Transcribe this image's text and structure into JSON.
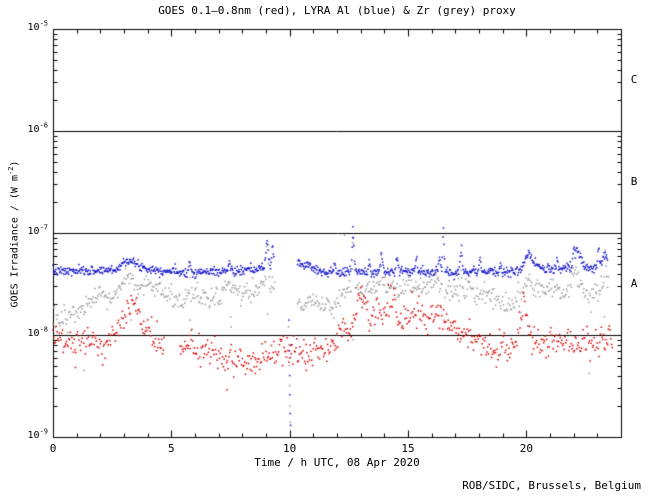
{
  "window": {
    "background": "#ffffff"
  },
  "footer": {
    "credit": "ROB/SIDC, Brussels, Belgium"
  },
  "chart_data": {
    "type": "scatter",
    "title": "GOES 0.1–0.8nm (red), LYRA Al (blue) & Zr (grey) proxy",
    "xlabel": "Time / h UTC, 08 Apr 2020",
    "ylabel": {
      "pre": "GOES Irradiance / (W m",
      "sup": "-2",
      "post": ")"
    },
    "x_axis": {
      "min": 0,
      "max": 24,
      "minor_step": 1,
      "major_ticks": [
        0,
        5,
        10,
        15,
        20
      ]
    },
    "y_axis": {
      "scale": "log",
      "log_min_exp": -9,
      "log_max_exp": -5,
      "decade_labels": [
        {
          "base": "10",
          "exp": "-5",
          "value_exp": -5
        },
        {
          "base": "10",
          "exp": "-6",
          "value_exp": -6
        },
        {
          "base": "10",
          "exp": "-7",
          "value_exp": -7
        },
        {
          "base": "10",
          "exp": "-8",
          "value_exp": -8
        },
        {
          "base": "10",
          "exp": "-9",
          "value_exp": -9
        }
      ]
    },
    "hlines": [
      1e-06,
      1e-07,
      1e-08
    ],
    "class_labels": [
      {
        "label": "C",
        "log_center": -5.5
      },
      {
        "label": "B",
        "log_center": -6.5
      },
      {
        "label": "A",
        "log_center": -7.5
      }
    ],
    "colors": {
      "goes_red": "#dc0000",
      "lyra_al_blue": "#1212cd",
      "lyra_zr_grey": "#9b9b9b",
      "axis": "#000000",
      "background": "#ffffff"
    },
    "grid": false,
    "legend": "in title",
    "series": [
      {
        "name": "LYRA Al proxy",
        "color_key": "lyra_al_blue",
        "seed": 7,
        "t_start": 0.0,
        "t_end": 23.45,
        "cadence_per_hour": 42,
        "noise_dex": 0.022,
        "gaps": [
          [
            9.35,
            10.32
          ]
        ],
        "trend": [
          [
            0,
            4.2e-08
          ],
          [
            1.0,
            4.2e-08
          ],
          [
            2.0,
            4.3e-08
          ],
          [
            2.7,
            4.4e-08
          ],
          [
            3.15,
            5.6e-08
          ],
          [
            3.5,
            4.9e-08
          ],
          [
            4.0,
            4.5e-08
          ],
          [
            4.5,
            4.3e-08
          ],
          [
            5.2,
            4.2e-08
          ],
          [
            6.0,
            4.1e-08
          ],
          [
            6.8,
            4.2e-08
          ],
          [
            7.6,
            4.2e-08
          ],
          [
            8.4,
            4.3e-08
          ],
          [
            9.0,
            4.6e-08
          ],
          [
            9.3,
            4.5e-08
          ],
          [
            10.35,
            5.3e-08
          ],
          [
            10.55,
            4.7e-08
          ],
          [
            10.8,
            5e-08
          ],
          [
            11.1,
            4.4e-08
          ],
          [
            11.6,
            4.1e-08
          ],
          [
            12.1,
            4e-08
          ],
          [
            12.7,
            4.2e-08
          ],
          [
            13.3,
            4.1e-08
          ],
          [
            14.0,
            4.2e-08
          ],
          [
            15.0,
            4.2e-08
          ],
          [
            16.0,
            4.1e-08
          ],
          [
            17.0,
            4.2e-08
          ],
          [
            18.0,
            4.2e-08
          ],
          [
            18.8,
            4.1e-08
          ],
          [
            19.4,
            4.2e-08
          ],
          [
            19.8,
            4.4e-08
          ],
          [
            20.1,
            6.2e-08
          ],
          [
            20.45,
            4.7e-08
          ],
          [
            20.8,
            4.4e-08
          ],
          [
            21.4,
            4.4e-08
          ],
          [
            21.9,
            4.5e-08
          ],
          [
            22.15,
            7.2e-08
          ],
          [
            22.45,
            4.7e-08
          ],
          [
            22.8,
            4.4e-08
          ],
          [
            23.1,
            4.6e-08
          ],
          [
            23.35,
            6.4e-08
          ],
          [
            23.45,
            5.2e-08
          ]
        ],
        "spikes": [
          {
            "t": 5.78,
            "amp": 0.09,
            "w": 0.04
          },
          {
            "t": 7.45,
            "amp": 0.09,
            "w": 0.04
          },
          {
            "t": 9.05,
            "amp": 0.26,
            "w": 0.05
          },
          {
            "t": 9.28,
            "amp": 0.22,
            "w": 0.04
          },
          {
            "t": 11.9,
            "amp": 0.12,
            "w": 0.04
          },
          {
            "t": 12.68,
            "amp": 0.36,
            "w": 0.04
          },
          {
            "t": 13.35,
            "amp": 0.1,
            "w": 0.03
          },
          {
            "t": 13.88,
            "amp": 0.16,
            "w": 0.04
          },
          {
            "t": 14.55,
            "amp": 0.13,
            "w": 0.04
          },
          {
            "t": 15.35,
            "amp": 0.13,
            "w": 0.04
          },
          {
            "t": 16.33,
            "amp": 0.12,
            "w": 0.04
          },
          {
            "t": 16.5,
            "amp": 0.42,
            "w": 0.03
          },
          {
            "t": 17.25,
            "amp": 0.22,
            "w": 0.04
          },
          {
            "t": 18.05,
            "amp": 0.13,
            "w": 0.04
          },
          {
            "t": 18.9,
            "amp": 0.09,
            "w": 0.03
          },
          {
            "t": 21.3,
            "amp": 0.09,
            "w": 0.03
          },
          {
            "t": 22.0,
            "amp": 0.12,
            "w": 0.03
          },
          {
            "t": 23.05,
            "amp": 0.2,
            "w": 0.035
          }
        ],
        "strays": [
          [
            9.97,
            1.4e-08
          ],
          [
            9.99,
            7e-09
          ],
          [
            10.0,
            4e-09
          ],
          [
            10.01,
            2.6e-09
          ],
          [
            10.02,
            1.7e-09
          ],
          [
            10.04,
            1.3e-09
          ],
          [
            10.06,
            8e-09
          ],
          [
            12.68,
            1.15e-07
          ]
        ]
      },
      {
        "name": "LYRA Zr proxy",
        "color_key": "lyra_zr_grey",
        "seed": 13,
        "t_start": 0.0,
        "t_end": 23.5,
        "cadence_per_hour": 30,
        "noise_dex": 0.055,
        "gaps": [
          [
            9.38,
            10.3
          ]
        ],
        "trend": [
          [
            0,
            1.4e-08
          ],
          [
            0.7,
            1.5e-08
          ],
          [
            1.3,
            1.8e-08
          ],
          [
            1.9,
            2.3e-08
          ],
          [
            2.4,
            2.3e-08
          ],
          [
            2.7,
            2.5e-08
          ],
          [
            3.2,
            4e-08
          ],
          [
            3.55,
            2.9e-08
          ],
          [
            4.0,
            3e-08
          ],
          [
            4.4,
            2.8e-08
          ],
          [
            4.9,
            2.3e-08
          ],
          [
            5.4,
            2.2e-08
          ],
          [
            5.85,
            2.7e-08
          ],
          [
            6.3,
            2.3e-08
          ],
          [
            6.9,
            2.4e-08
          ],
          [
            7.5,
            2.9e-08
          ],
          [
            8.0,
            2.5e-08
          ],
          [
            8.55,
            2.6e-08
          ],
          [
            9.05,
            3.3e-08
          ],
          [
            9.3,
            3.3e-08
          ],
          [
            10.35,
            2.3e-08
          ],
          [
            10.6,
            1.9e-08
          ],
          [
            11.0,
            2.2e-08
          ],
          [
            11.4,
            1.9e-08
          ],
          [
            11.8,
            2e-08
          ],
          [
            12.2,
            2.3e-08
          ],
          [
            12.7,
            3e-08
          ],
          [
            13.1,
            2.6e-08
          ],
          [
            13.5,
            2.9e-08
          ],
          [
            13.9,
            3e-08
          ],
          [
            14.4,
            2.7e-08
          ],
          [
            14.9,
            3e-08
          ],
          [
            15.4,
            2.8e-08
          ],
          [
            15.9,
            3e-08
          ],
          [
            16.4,
            3e-08
          ],
          [
            16.9,
            2.6e-08
          ],
          [
            17.4,
            2.8e-08
          ],
          [
            17.9,
            2.5e-08
          ],
          [
            18.4,
            2.6e-08
          ],
          [
            18.9,
            2.3e-08
          ],
          [
            19.35,
            1.9e-08
          ],
          [
            19.8,
            2.5e-08
          ],
          [
            20.1,
            3.6e-08
          ],
          [
            20.5,
            2.7e-08
          ],
          [
            21.0,
            2.6e-08
          ],
          [
            21.6,
            2.7e-08
          ],
          [
            22.1,
            4e-08
          ],
          [
            22.45,
            2.5e-08
          ],
          [
            22.7,
            2.2e-08
          ],
          [
            23.0,
            2.7e-08
          ],
          [
            23.35,
            3.8e-08
          ],
          [
            23.5,
            3e-08
          ]
        ],
        "spikes": [
          {
            "t": 9.05,
            "amp": 0.3,
            "w": 0.04
          },
          {
            "t": 12.68,
            "amp": 0.55,
            "w": 0.03
          },
          {
            "t": 13.88,
            "amp": 0.15,
            "w": 0.03
          },
          {
            "t": 15.35,
            "amp": 0.1,
            "w": 0.03
          },
          {
            "t": 16.5,
            "amp": 0.55,
            "w": 0.025
          },
          {
            "t": 17.25,
            "amp": 0.2,
            "w": 0.03
          },
          {
            "t": 23.35,
            "amp": 0.2,
            "w": 0.03
          }
        ],
        "strays": [
          [
            9.95,
            1.2e-08
          ],
          [
            9.97,
            8e-09
          ],
          [
            9.99,
            5e-09
          ],
          [
            10.0,
            3.2e-09
          ],
          [
            10.02,
            2e-09
          ],
          [
            10.03,
            1.4e-09
          ],
          [
            10.05,
            6e-09
          ],
          [
            5.8,
            1.4e-08
          ],
          [
            5.83,
            1.1e-08
          ],
          [
            7.5,
            1.5e-08
          ],
          [
            7.53,
            1.2e-08
          ],
          [
            9.07,
            1.6e-08
          ],
          [
            12.66,
            1.3e-08
          ],
          [
            12.69,
            9e-09
          ],
          [
            16.52,
            1.4e-08
          ],
          [
            1.3,
            4.5e-09
          ],
          [
            22.65,
            4.2e-09
          ],
          [
            12.32,
            9.5e-08
          ],
          [
            23.3,
            1.5e-08
          ],
          [
            3.3,
            1.4e-08
          ]
        ]
      },
      {
        "name": "GOES 0.1-0.8nm",
        "color_key": "goes_red",
        "seed": 29,
        "t_start": 0.0,
        "t_end": 23.65,
        "cadence_per_hour": 30,
        "noise_dex": 0.07,
        "gaps": [
          [
            4.72,
            5.36
          ]
        ],
        "trend": [
          [
            0,
            9.5e-09
          ],
          [
            0.4,
            9e-09
          ],
          [
            0.9,
            8e-09
          ],
          [
            1.4,
            9e-09
          ],
          [
            1.9,
            8.5e-09
          ],
          [
            2.4,
            9e-09
          ],
          [
            2.8,
            1.15e-08
          ],
          [
            3.05,
            1.6e-08
          ],
          [
            3.3,
            2.3e-08
          ],
          [
            3.6,
            1.5e-08
          ],
          [
            4.0,
            1.1e-08
          ],
          [
            4.4,
            8.5e-09
          ],
          [
            4.7,
            7.5e-09
          ],
          [
            5.4,
            7e-09
          ],
          [
            5.9,
            7.5e-09
          ],
          [
            6.4,
            7e-09
          ],
          [
            6.9,
            6.5e-09
          ],
          [
            7.4,
            5.5e-09
          ],
          [
            7.9,
            6e-09
          ],
          [
            8.4,
            5.5e-09
          ],
          [
            8.9,
            6.5e-09
          ],
          [
            9.4,
            7e-09
          ],
          [
            9.9,
            7.5e-09
          ],
          [
            10.4,
            6.5e-09
          ],
          [
            10.9,
            7e-09
          ],
          [
            11.4,
            7.5e-09
          ],
          [
            11.9,
            9e-09
          ],
          [
            12.25,
            1.2e-08
          ],
          [
            12.55,
            1e-08
          ],
          [
            12.9,
            2.1e-08
          ],
          [
            13.15,
            2.2e-08
          ],
          [
            13.4,
            1.5e-08
          ],
          [
            13.65,
            1.9e-08
          ],
          [
            13.9,
            1.5e-08
          ],
          [
            14.15,
            2.1e-08
          ],
          [
            14.5,
            1.8e-08
          ],
          [
            14.8,
            1.3e-08
          ],
          [
            15.1,
            1.6e-08
          ],
          [
            15.45,
            1.8e-08
          ],
          [
            15.75,
            1.4e-08
          ],
          [
            16.05,
            1.5e-08
          ],
          [
            16.35,
            1.6e-08
          ],
          [
            16.65,
            1.3e-08
          ],
          [
            17.0,
            1.2e-08
          ],
          [
            17.4,
            1e-08
          ],
          [
            17.8,
            9e-09
          ],
          [
            18.2,
            8e-09
          ],
          [
            18.6,
            7e-09
          ],
          [
            19.0,
            7.5e-09
          ],
          [
            19.3,
            7e-09
          ],
          [
            19.6,
            9e-09
          ],
          [
            19.9,
            2.1e-08
          ],
          [
            20.15,
            1.15e-08
          ],
          [
            20.4,
            9e-09
          ],
          [
            20.8,
            8e-09
          ],
          [
            21.2,
            9.5e-09
          ],
          [
            21.6,
            9e-09
          ],
          [
            22.0,
            8e-09
          ],
          [
            22.4,
            9e-09
          ],
          [
            22.8,
            7.5e-09
          ],
          [
            23.2,
            9e-09
          ],
          [
            23.65,
            8.5e-09
          ]
        ],
        "spikes": [],
        "strays": [
          [
            7.35,
            2.9e-09
          ],
          [
            8.55,
            4.2e-09
          ],
          [
            10.7,
            4.5e-09
          ],
          [
            0.95,
            4.8e-09
          ],
          [
            13.05,
            3e-08
          ]
        ]
      }
    ]
  }
}
